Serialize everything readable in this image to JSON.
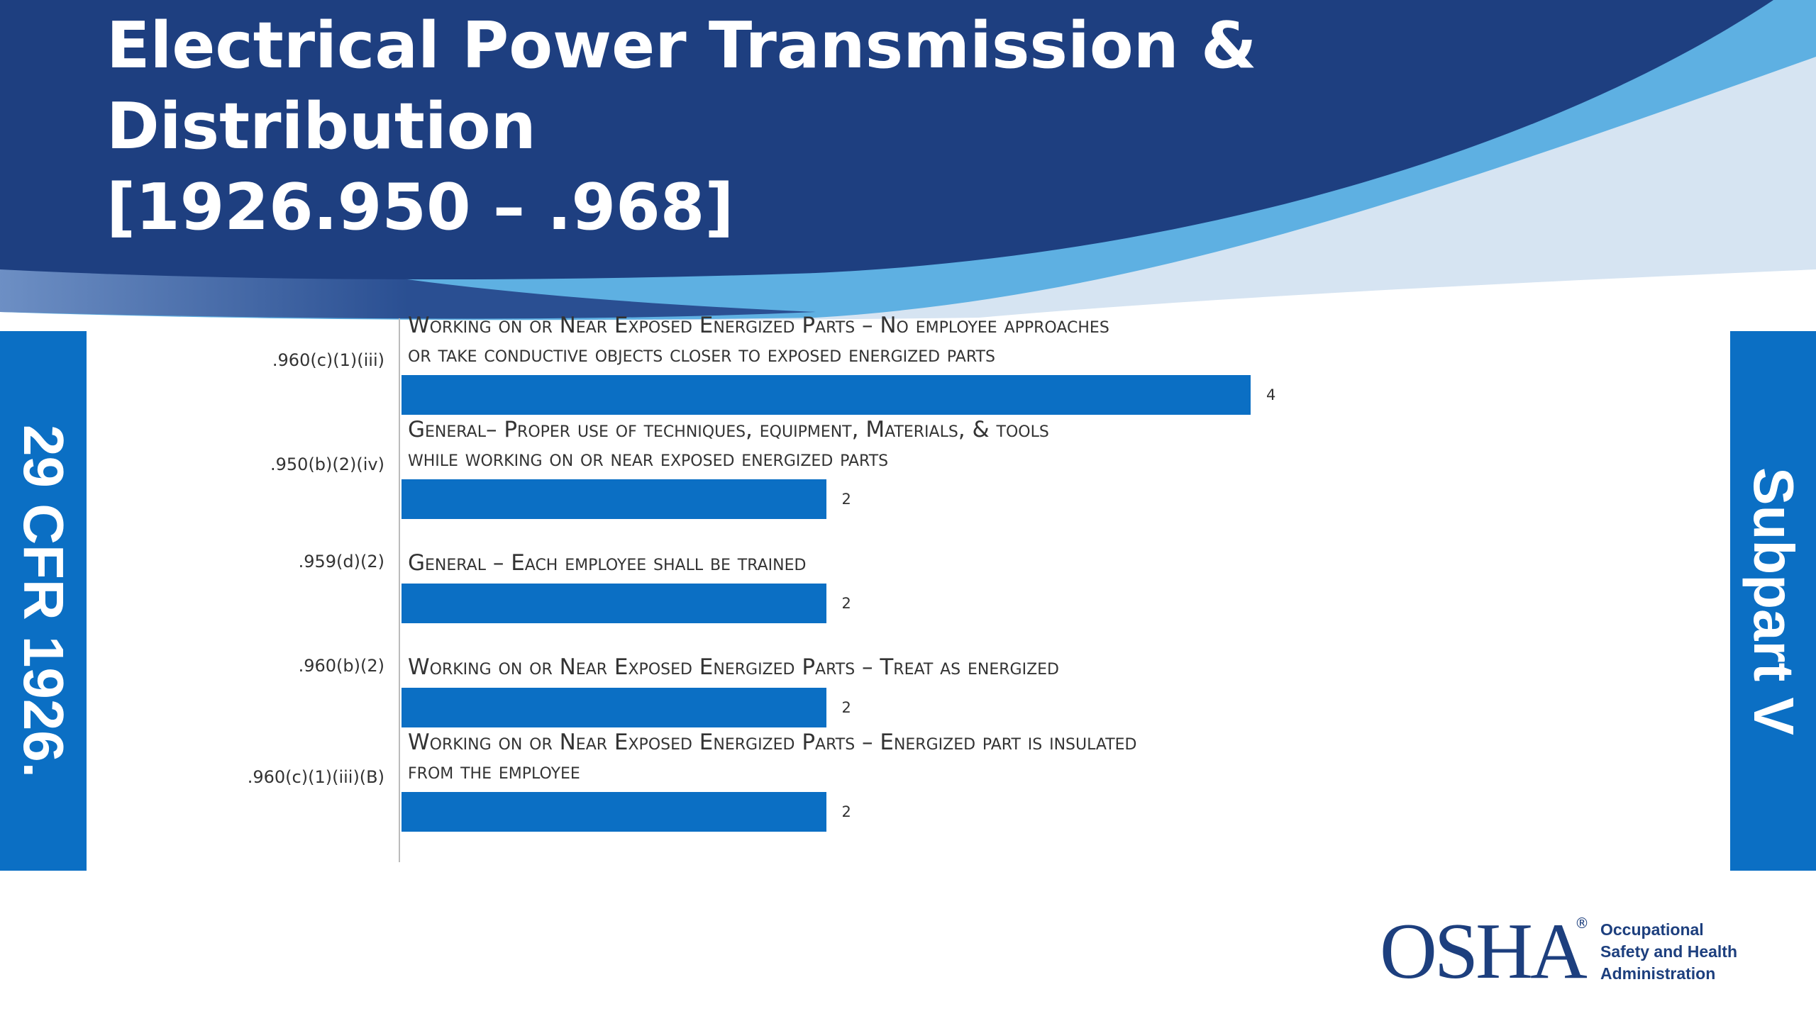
{
  "header": {
    "title_lines": [
      "Electrical Power Transmission &",
      "Distribution",
      "[1926.950 – .968]"
    ]
  },
  "side_left": "29 CFR 1926.",
  "side_right": "Subpart V",
  "chart_data": {
    "type": "bar",
    "orientation": "horizontal",
    "color": "#0b6fc4",
    "categories": [
      ".960(c)(1)(iii)",
      ".950(b)(2)(iv)",
      ".959(d)(2)",
      ".960(b)(2)",
      ".960(c)(1)(iii)(B)"
    ],
    "descriptions": [
      [
        "Working on or Near Exposed Energized Parts – No employee approaches",
        "or take conductive objects closer to exposed energized parts"
      ],
      [
        "General– Proper use of techniques, equipment, Materials, & tools",
        "while working on or near exposed energized parts"
      ],
      [
        "General – Each employee shall be trained"
      ],
      [
        "Working on or Near Exposed Energized Parts – Treat as energized"
      ],
      [
        "Working on or Near Exposed Energized Parts – Energized part is insulated",
        "from the employee"
      ]
    ],
    "values": [
      4,
      2,
      2,
      2,
      2
    ]
  },
  "logo": {
    "mark": "OSHA",
    "lines": [
      "Occupational",
      "Safety and Health",
      "Administration"
    ]
  }
}
